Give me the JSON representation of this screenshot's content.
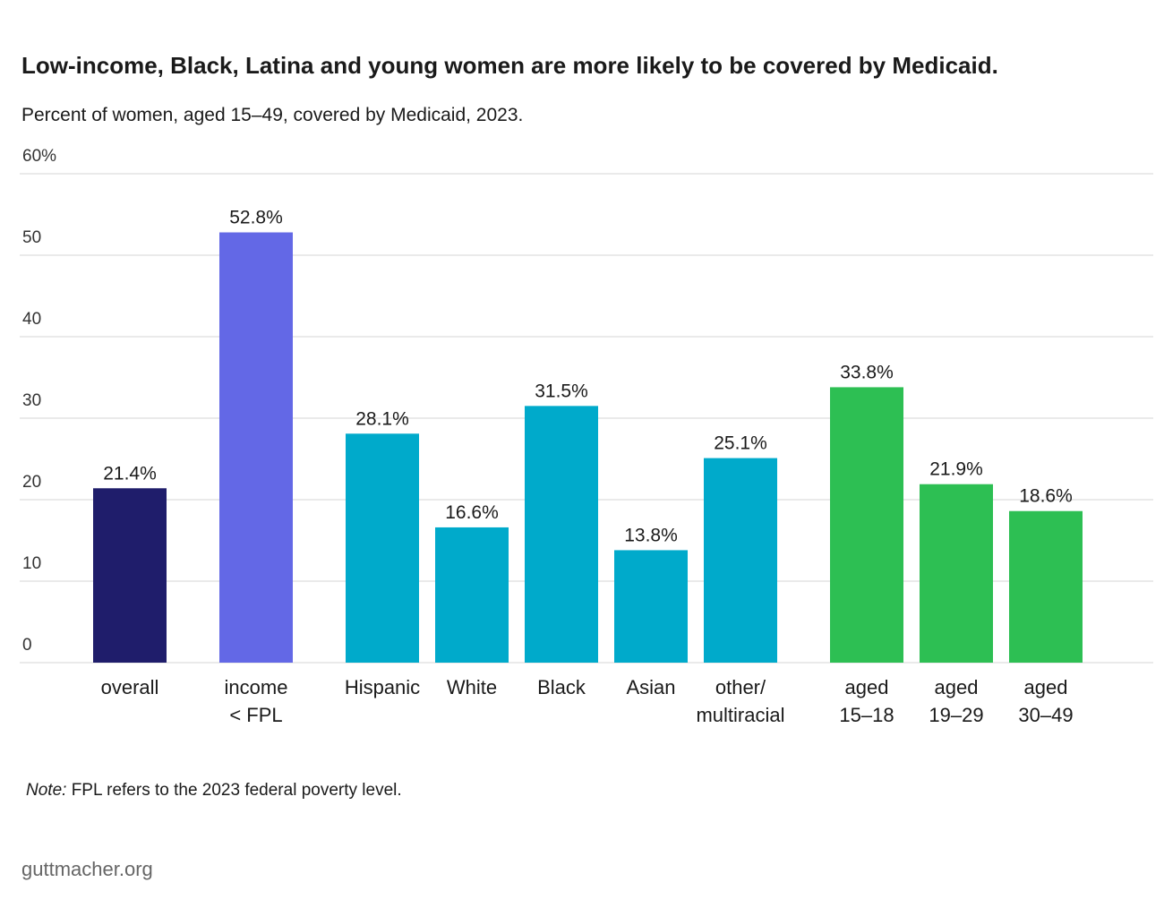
{
  "chart_data": {
    "type": "bar",
    "title": "Low-income, Black, Latina and young women are more likely to be covered by Medicaid.",
    "subtitle": "Percent of women, aged 15–49, covered by Medicaid, 2023.",
    "categories": [
      "overall",
      "income\n< FPL",
      "Hispanic",
      "White",
      "Black",
      "Asian",
      "other/\nmultiracial",
      "aged\n15–18",
      "aged\n19–29",
      "aged\n30–49"
    ],
    "values": [
      21.4,
      52.8,
      28.1,
      16.6,
      31.5,
      13.8,
      25.1,
      33.8,
      21.9,
      18.6
    ],
    "value_labels": [
      "21.4%",
      "52.8%",
      "28.1%",
      "16.6%",
      "31.5%",
      "13.8%",
      "25.1%",
      "33.8%",
      "21.9%",
      "18.6%"
    ],
    "colors": [
      "#1f1d6b",
      "#6368e6",
      "#00aacb",
      "#00aacb",
      "#00aacb",
      "#00aacb",
      "#00aacb",
      "#2dbf53",
      "#2dbf53",
      "#2dbf53"
    ],
    "ylim": [
      0,
      60
    ],
    "yticks": [
      0,
      10,
      20,
      30,
      40,
      50,
      {
        "value": 60,
        "label": "60%"
      }
    ],
    "grid": true,
    "note": {
      "label": "Note:",
      "text": "FPL refers to the 2023 federal poverty level."
    },
    "source": "guttmacher.org"
  }
}
